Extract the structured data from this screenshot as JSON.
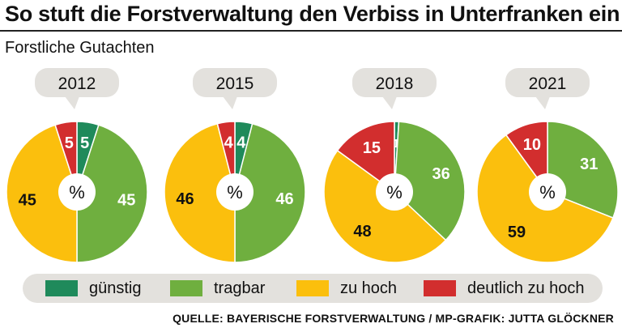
{
  "title": "So stuft die Forstverwaltung den Verbiss in Unterfranken ein",
  "subtitle": "Forstliche Gutachten",
  "source": "QUELLE: BAYERISCHE FORSTVERWALTUNG / MP-GRAFIK: JUTTA GLÖCKNER",
  "center_label": "%",
  "colors": {
    "günstig": "#1f8a5b",
    "tragbar": "#6faf3f",
    "zu hoch": "#fbbf0d",
    "deutlich zu hoch": "#d22e2e"
  },
  "legend": [
    {
      "name": "günstig",
      "color": "#1f8a5b"
    },
    {
      "name": "tragbar",
      "color": "#6faf3f"
    },
    {
      "name": "zu hoch",
      "color": "#fbbf0d"
    },
    {
      "name": "deutlich zu hoch",
      "color": "#d22e2e"
    }
  ],
  "chart_data": {
    "type": "pie",
    "categories": [
      "günstig",
      "tragbar",
      "zu hoch",
      "deutlich zu hoch"
    ],
    "unit": "%",
    "pies": [
      {
        "label": "2012",
        "values": [
          5,
          45,
          45,
          5
        ]
      },
      {
        "label": "2015",
        "values": [
          4,
          46,
          46,
          4
        ]
      },
      {
        "label": "2018",
        "values": [
          1,
          36,
          48,
          15
        ]
      },
      {
        "label": "2021",
        "values": [
          0,
          31,
          59,
          10
        ]
      }
    ]
  }
}
